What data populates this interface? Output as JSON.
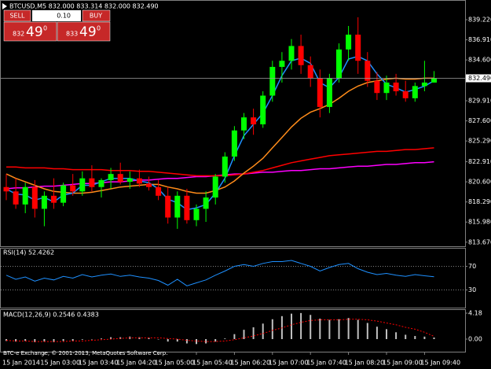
{
  "trade_panel": {
    "sell": "SELL",
    "buy": "BUY",
    "lot": "0.10",
    "sell_price": {
      "small": "832",
      "big": "49",
      "sup": "0"
    },
    "buy_price": {
      "small": "833",
      "big": "49",
      "sup": "0"
    }
  },
  "copyright": "BTC-e Exchange, © 2001-2013, MetaQuotes Software Corp.",
  "chart_data": [
    {
      "type": "candlestick",
      "title": "BTCUSD,M5 832.000 833.314 832.000 832.490",
      "up_color": "#00ff00",
      "down_color": "#ff0000",
      "open": [
        820.0,
        819.5,
        818.0,
        820.0,
        817.5,
        819.0,
        818.2,
        820.2,
        819.5,
        821.0,
        820.0,
        820.8,
        821.5,
        820.6,
        821.0,
        820.4,
        820.0,
        819.0,
        816.5,
        819.0,
        816.2,
        817.5,
        818.8,
        821.2,
        823.5,
        826.5,
        828.0,
        827.2,
        830.5,
        833.8,
        834.5,
        836.2,
        834.0,
        832.5,
        829.2,
        832.5,
        835.8,
        837.5,
        834.5,
        832.2,
        830.8,
        832.0,
        831.0,
        830.2,
        831.6,
        832.0
      ],
      "high": [
        821.5,
        821.0,
        820.5,
        820.8,
        819.5,
        821.0,
        820.5,
        821.5,
        821.8,
        822.5,
        821.0,
        822.2,
        822.8,
        821.8,
        822.0,
        821.2,
        820.8,
        820.0,
        819.5,
        819.8,
        818.0,
        819.5,
        821.5,
        824.0,
        827.0,
        828.5,
        829.0,
        831.0,
        834.5,
        835.5,
        837.0,
        837.5,
        835.0,
        833.5,
        833.0,
        836.5,
        838.5,
        839.5,
        835.5,
        833.2,
        832.8,
        833.0,
        832.2,
        832.0,
        834.5,
        833.314
      ],
      "low": [
        818.5,
        817.5,
        817.0,
        816.5,
        815.5,
        817.5,
        817.8,
        819.0,
        819.0,
        819.5,
        818.8,
        819.8,
        820.3,
        819.8,
        820.0,
        819.6,
        818.5,
        815.8,
        815.2,
        815.8,
        815.5,
        816.0,
        818.0,
        820.5,
        823.0,
        825.5,
        826.0,
        826.8,
        829.8,
        832.0,
        833.5,
        833.0,
        831.5,
        828.0,
        828.5,
        832.0,
        834.5,
        833.0,
        831.5,
        830.0,
        830.0,
        830.5,
        829.8,
        829.8,
        831.0,
        832.0
      ],
      "close": [
        819.5,
        818.0,
        820.0,
        817.5,
        819.0,
        818.2,
        820.2,
        819.5,
        821.0,
        820.0,
        820.8,
        821.5,
        820.6,
        821.0,
        820.4,
        820.0,
        819.0,
        816.5,
        819.0,
        816.2,
        817.5,
        818.8,
        821.2,
        823.5,
        826.5,
        828.0,
        827.2,
        830.5,
        833.8,
        834.5,
        836.2,
        834.0,
        832.5,
        829.2,
        832.5,
        835.8,
        837.5,
        834.5,
        832.2,
        830.8,
        832.0,
        831.0,
        830.2,
        831.6,
        832.0,
        832.49
      ],
      "series": [
        {
          "color": "#ff00ff",
          "values": [
            819.8,
            819.9,
            819.9,
            820.0,
            820.1,
            820.1,
            820.2,
            820.3,
            820.4,
            820.4,
            820.5,
            820.6,
            820.6,
            820.7,
            820.8,
            820.8,
            820.9,
            821.0,
            821.0,
            821.1,
            821.2,
            821.2,
            821.3,
            821.4,
            821.5,
            821.5,
            821.6,
            821.7,
            821.7,
            821.8,
            821.9,
            821.9,
            822.0,
            822.1,
            822.1,
            822.2,
            822.3,
            822.4,
            822.4,
            822.5,
            822.6,
            822.6,
            822.7,
            822.8,
            822.8,
            822.9
          ]
        },
        {
          "color": "#ff0000",
          "values": [
            822.3,
            822.3,
            822.2,
            822.2,
            822.2,
            822.1,
            822.1,
            822.0,
            822.0,
            822.0,
            822.0,
            821.9,
            821.9,
            821.9,
            821.8,
            821.8,
            821.7,
            821.6,
            821.5,
            821.4,
            821.3,
            821.3,
            821.3,
            821.3,
            821.4,
            821.5,
            821.7,
            821.9,
            822.2,
            822.5,
            822.8,
            823.0,
            823.2,
            823.4,
            823.6,
            823.7,
            823.8,
            823.9,
            824.0,
            824.1,
            824.1,
            824.2,
            824.3,
            824.3,
            824.4,
            824.5
          ]
        },
        {
          "color": "#ff8c1a",
          "values": [
            821.5,
            821.0,
            820.6,
            820.2,
            819.8,
            819.5,
            819.4,
            819.3,
            819.3,
            819.4,
            819.6,
            819.8,
            820.0,
            820.1,
            820.2,
            820.3,
            820.3,
            820.0,
            819.8,
            819.5,
            819.3,
            819.3,
            819.6,
            820.0,
            820.7,
            821.6,
            822.4,
            823.3,
            824.5,
            825.7,
            826.9,
            827.9,
            828.6,
            829.0,
            829.5,
            830.2,
            831.0,
            831.6,
            832.0,
            832.2,
            832.4,
            832.5,
            832.4,
            832.4,
            832.5,
            832.5
          ]
        },
        {
          "color": "#1e90ff",
          "values": [
            819.8,
            819.2,
            819.1,
            818.5,
            818.8,
            818.3,
            819.1,
            819.3,
            820.2,
            820.2,
            820.6,
            821.0,
            821.0,
            821.0,
            820.7,
            820.5,
            819.8,
            818.6,
            818.2,
            817.4,
            817.6,
            818.0,
            819.3,
            821.0,
            823.6,
            825.9,
            827.2,
            828.5,
            830.5,
            832.8,
            834.5,
            834.8,
            834.2,
            832.0,
            831.4,
            832.6,
            834.7,
            835.0,
            834.5,
            833.0,
            831.8,
            831.4,
            830.9,
            831.2,
            831.6,
            832.2
          ]
        }
      ],
      "ylim": [
        813.2,
        841.3
      ],
      "yticks": [
        {
          "value": 839.22,
          "label": "839.220"
        },
        {
          "value": 836.91,
          "label": "836.910"
        },
        {
          "value": 834.6,
          "label": "834.600"
        },
        {
          "value": 829.91,
          "label": "829.910"
        },
        {
          "value": 827.6,
          "label": "827.600"
        },
        {
          "value": 825.29,
          "label": "825.290"
        },
        {
          "value": 822.91,
          "label": "822.910"
        },
        {
          "value": 820.6,
          "label": "820.600"
        },
        {
          "value": 818.29,
          "label": "818.290"
        },
        {
          "value": 815.98,
          "label": "815.980"
        },
        {
          "value": 813.67,
          "label": "813.670"
        }
      ],
      "last_price": {
        "value": 832.49,
        "label": "832.490"
      },
      "xticks": [
        {
          "value": 0,
          "label": "15 Jan 2014"
        },
        {
          "value": 4,
          "label": "15 Jan 03:00"
        },
        {
          "value": 8,
          "label": "15 Jan 03:40"
        },
        {
          "value": 12,
          "label": "15 Jan 04:20"
        },
        {
          "value": 16,
          "label": "15 Jan 05:00"
        },
        {
          "value": 20,
          "label": "15 Jan 05:40"
        },
        {
          "value": 24,
          "label": "15 Jan 06:20"
        },
        {
          "value": 28,
          "label": "15 Jan 07:00"
        },
        {
          "value": 32,
          "label": "15 Jan 07:40"
        },
        {
          "value": 36,
          "label": "15 Jan 08:20"
        },
        {
          "value": 40,
          "label": "15 Jan 09:00"
        },
        {
          "value": 44,
          "label": "15 Jan 09:40"
        }
      ]
    },
    {
      "type": "line",
      "title": "RSI(14) 52.4262",
      "color": "#1e90ff",
      "values": [
        55,
        48,
        52,
        45,
        50,
        47,
        53,
        50,
        56,
        52,
        55,
        57,
        53,
        55,
        52,
        50,
        46,
        38,
        48,
        37,
        42,
        47,
        55,
        62,
        70,
        73,
        70,
        75,
        78,
        78,
        80,
        75,
        70,
        62,
        68,
        73,
        75,
        66,
        60,
        56,
        58,
        55,
        53,
        56,
        54,
        52.4262
      ],
      "ylim": [
        0,
        100
      ],
      "yticks": [
        70,
        30
      ]
    },
    {
      "type": "macd",
      "title": "MACD(12,26,9) 0.2546 0.4383",
      "color": "#c0c0c0",
      "signal_color": "#ff0000",
      "values": [
        -0.3,
        -0.4,
        -0.3,
        -0.5,
        -0.4,
        -0.5,
        -0.3,
        -0.3,
        -0.1,
        0.0,
        0.1,
        0.3,
        0.3,
        0.4,
        0.3,
        0.2,
        0.0,
        -0.4,
        -0.4,
        -0.7,
        -0.8,
        -0.7,
        -0.4,
        0.1,
        0.8,
        1.5,
        1.9,
        2.5,
        3.2,
        3.7,
        4.1,
        4.2,
        3.9,
        3.3,
        3.1,
        3.2,
        3.4,
        3.1,
        2.6,
        2.0,
        1.6,
        1.1,
        0.7,
        0.5,
        0.4,
        0.2546
      ],
      "signal": [
        -0.2,
        -0.3,
        -0.3,
        -0.4,
        -0.4,
        -0.4,
        -0.4,
        -0.3,
        -0.3,
        -0.2,
        -0.1,
        0.0,
        0.1,
        0.2,
        0.2,
        0.2,
        0.2,
        0.1,
        0.0,
        -0.2,
        -0.3,
        -0.4,
        -0.4,
        -0.3,
        -0.1,
        0.2,
        0.5,
        0.9,
        1.4,
        1.8,
        2.3,
        2.7,
        3.0,
        3.1,
        3.1,
        3.1,
        3.2,
        3.2,
        3.1,
        2.9,
        2.6,
        2.3,
        1.9,
        1.6,
        1.1,
        0.4383
      ],
      "ylim": [
        -2.03,
        4.69
      ],
      "yticks": [
        4.18,
        {
          "value": 0,
          "label": "0.00"
        }
      ]
    }
  ]
}
